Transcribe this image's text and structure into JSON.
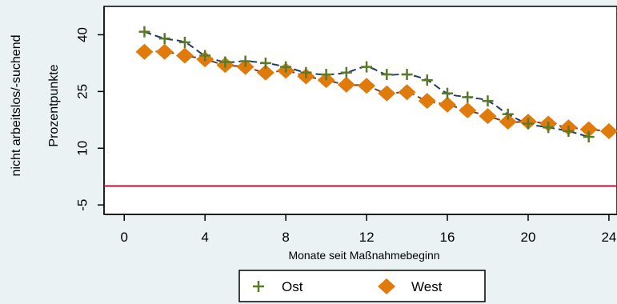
{
  "chart_data": {
    "type": "line",
    "xlabel": "Monate seit Maßnahmebeginn",
    "ylabel_lines": [
      "nicht arbeitslos/-suchend",
      "Prozentpunkte"
    ],
    "x_ticks": [
      0,
      4,
      8,
      12,
      16,
      20,
      24
    ],
    "y_ticks": [
      -5,
      10,
      25,
      40
    ],
    "xlim": [
      -1,
      24.4
    ],
    "ylim": [
      -7.5,
      47.5
    ],
    "reference_line": {
      "y": 0,
      "color": "#b5123a"
    },
    "grid": false,
    "legend_position": "bottom",
    "series": [
      {
        "name": "Ost",
        "marker": "plus",
        "color": "#5a7a2a",
        "line_color": "#1f3d6b",
        "x": [
          1,
          2,
          3,
          4,
          5,
          6,
          7,
          8,
          9,
          10,
          11,
          12,
          13,
          14,
          15,
          16,
          17,
          18,
          19,
          20,
          21,
          22,
          23
        ],
        "values": [
          40.8,
          39.0,
          38.0,
          34.5,
          32.8,
          33.0,
          32.5,
          31.5,
          30.0,
          29.5,
          30.0,
          31.5,
          29.5,
          29.5,
          28.0,
          24.5,
          23.5,
          22.5,
          19.0,
          16.5,
          15.5,
          14.5,
          13.0
        ]
      },
      {
        "name": "West",
        "marker": "diamond",
        "color": "#e07b0b",
        "line_color": "#7a3b1e",
        "x": [
          1,
          2,
          3,
          4,
          5,
          6,
          7,
          8,
          9,
          10,
          11,
          12,
          13,
          14,
          15,
          16,
          17,
          18,
          19,
          20,
          21,
          22,
          23,
          24
        ],
        "values": [
          35.5,
          35.5,
          34.5,
          33.5,
          32.0,
          31.5,
          30.0,
          30.5,
          29.0,
          28.0,
          26.8,
          26.5,
          24.5,
          24.8,
          22.5,
          21.5,
          20.0,
          18.5,
          17.0,
          17.0,
          16.5,
          15.5,
          15.0,
          14.5
        ]
      }
    ]
  }
}
